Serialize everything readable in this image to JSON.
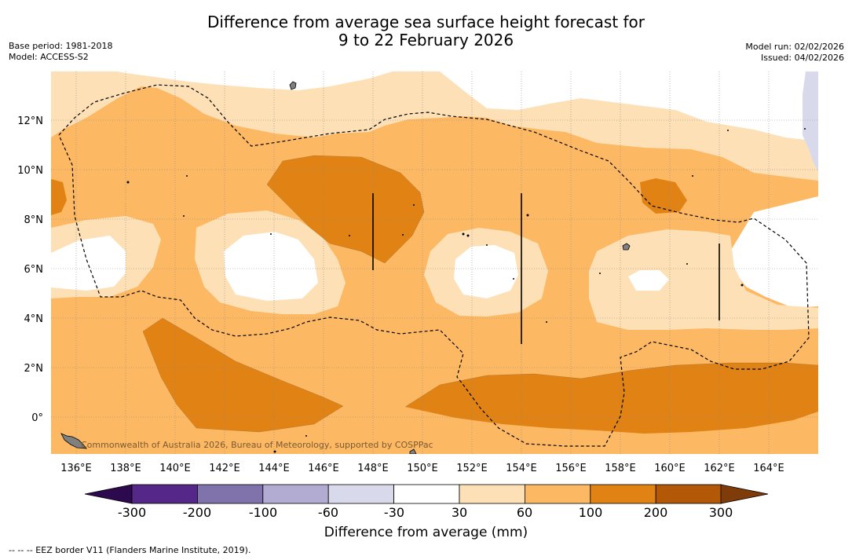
{
  "title": {
    "line1": "Difference from average sea surface height forecast for",
    "line2": "9 to 22 February 2026"
  },
  "meta_left": {
    "base_period": "Base period: 1981-2018",
    "model": "Model: ACCESS-S2"
  },
  "meta_right": {
    "model_run": "Model run: 02/02/2026",
    "issued": "Issued: 04/02/2026"
  },
  "map": {
    "lat_labels": [
      "12°N",
      "10°N",
      "8°N",
      "6°N",
      "4°N",
      "2°N",
      "0°"
    ],
    "lon_labels": [
      "136°E",
      "138°E",
      "140°E",
      "142°E",
      "144°E",
      "146°E",
      "148°E",
      "150°E",
      "152°E",
      "154°E",
      "156°E",
      "158°E",
      "160°E",
      "162°E",
      "164°E"
    ],
    "attribution": "Commonwealth of Australia 2026, Bureau of Meteorology, supported by COSPPac"
  },
  "colorbar": {
    "title": "Difference from average (mm)",
    "tick_labels": [
      "-300",
      "-200",
      "-100",
      "-60",
      "-30",
      "30",
      "60",
      "100",
      "200",
      "300"
    ],
    "colors": [
      "#2d0a4e",
      "#542788",
      "#8073ac",
      "#b2abd2",
      "#d8daeb",
      "#ffffff",
      "#fee0b6",
      "#fdb863",
      "#e08214",
      "#b35806",
      "#7f3b08"
    ]
  },
  "footnote": "--  --  -- EEZ border V11 (Flanders Marine Institute, 2019)."
}
